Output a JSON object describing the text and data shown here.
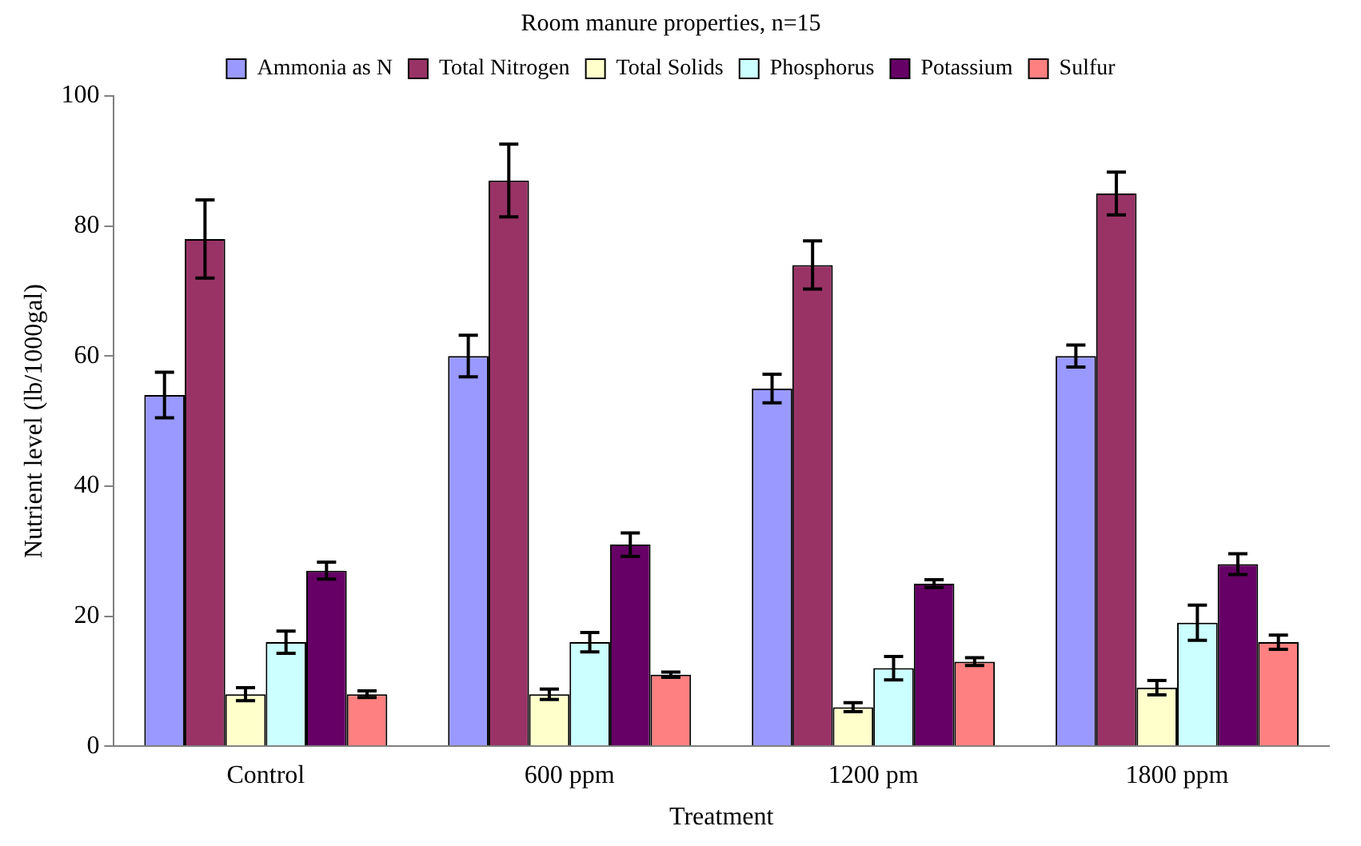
{
  "chart_data": {
    "type": "bar",
    "title": "Room manure properties, n=15",
    "xlabel": "Treatment",
    "ylabel": "Nutrient level (lb/1000gal)",
    "categories": [
      "Control",
      "600 ppm",
      "1200 pm",
      "1800 ppm"
    ],
    "series": [
      {
        "name": "Ammonia as N",
        "color": "#9999ff",
        "values": [
          54,
          60,
          55,
          60
        ],
        "errors": [
          3.5,
          3.2,
          2.2,
          1.7
        ]
      },
      {
        "name": "Total Nitrogen",
        "color": "#993366",
        "values": [
          78,
          87,
          74,
          85
        ],
        "errors": [
          6,
          5.6,
          3.7,
          3.3
        ]
      },
      {
        "name": "Total Solids",
        "color": "#ffffcc",
        "values": [
          8,
          8,
          6,
          9
        ],
        "errors": [
          1,
          0.8,
          0.7,
          1.1
        ]
      },
      {
        "name": "Phosphorus",
        "color": "#ccffff",
        "values": [
          16,
          16,
          12,
          19
        ],
        "errors": [
          1.7,
          1.5,
          1.8,
          2.7
        ]
      },
      {
        "name": "Potassium",
        "color": "#660066",
        "values": [
          27,
          31,
          25,
          28
        ],
        "errors": [
          1.3,
          1.8,
          0.6,
          1.6
        ]
      },
      {
        "name": "Sulfur",
        "color": "#ff8080",
        "values": [
          8,
          11,
          13,
          16
        ],
        "errors": [
          0.5,
          0.4,
          0.6,
          1.1
        ]
      }
    ],
    "ylim": [
      0,
      100
    ],
    "yticks": [
      0,
      20,
      40,
      60,
      80,
      100
    ],
    "grid": false,
    "legend": "top"
  }
}
